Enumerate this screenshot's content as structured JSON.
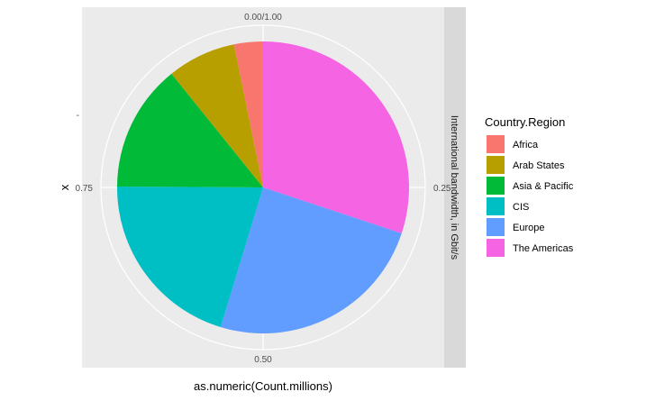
{
  "chart_data": {
    "type": "pie",
    "coord": "polar",
    "x_axis_title": "as.numeric(Count.millions)",
    "y_axis_title": "x",
    "y_tick_label": "-",
    "facet_label": "International bandwidth, in Gbit/s",
    "theta_ticks": [
      {
        "value": 0.0,
        "label": "0.00/1.00"
      },
      {
        "value": 0.25,
        "label": "0.25"
      },
      {
        "value": 0.5,
        "label": "0.50"
      },
      {
        "value": 0.75,
        "label": "0.75"
      }
    ],
    "legend": {
      "title": "Country.Region",
      "position": "right"
    },
    "slices": [
      {
        "name": "Africa",
        "value": 0.032,
        "color": "#F8766D"
      },
      {
        "name": "Arab States",
        "value": 0.076,
        "color": "#B79F00"
      },
      {
        "name": "Asia & Pacific",
        "value": 0.141,
        "color": "#00BA38"
      },
      {
        "name": "CIS",
        "value": 0.204,
        "color": "#00BFC4"
      },
      {
        "name": "Europe",
        "value": 0.246,
        "color": "#619CFF"
      },
      {
        "name": "The Americas",
        "value": 0.301,
        "color": "#F564E3"
      }
    ],
    "slice_order_clockwise_from_top": [
      "The Americas",
      "Europe",
      "CIS",
      "Asia & Pacific",
      "Arab States",
      "Africa"
    ],
    "grid": true
  }
}
